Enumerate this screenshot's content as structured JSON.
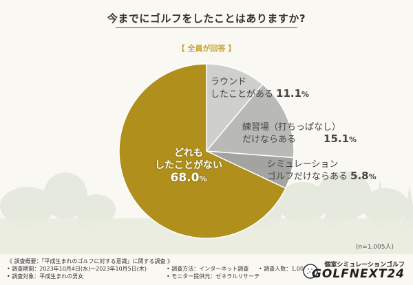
{
  "title": "今までにゴルフをしたことはありますか?",
  "subtitle": "【 全員が回答 】",
  "chart_data": {
    "type": "pie",
    "unit": "%",
    "slices": [
      {
        "label_lines": [
          "ラウンド",
          "したことがある"
        ],
        "value": 11.1,
        "value_text": "11.1",
        "color": "#cfcfcc"
      },
      {
        "label_lines": [
          "練習場（打ちっぱなし）",
          "だけならある"
        ],
        "value": 15.1,
        "value_text": "15.1",
        "color": "#b9b9b6"
      },
      {
        "label_lines": [
          "シミュレーション",
          "ゴルフだけならある"
        ],
        "value": 5.8,
        "value_text": "5.8",
        "color": "#a3a3a0"
      },
      {
        "label_lines": [
          "どれも",
          "したことがない"
        ],
        "value": 68.0,
        "value_text": "68.0",
        "color": "#b08f1c"
      }
    ]
  },
  "note_n": "(n=1,005人)",
  "footer": {
    "survey_overview": "《 調査概要：「平成生まれのゴルフに対する意識」に関する調査 》",
    "survey_period": "• 調査期間：2023年10月4日(水)～2023年10月5日(木)",
    "survey_target": "• 調査対象：平成生まれの男女",
    "survey_method": "• 調査方法：インターネット調査",
    "monitor_provider": "• モニター提供元：ゼネラルリサーチ",
    "survey_count": "• 調査人数：1,005人"
  },
  "logo": {
    "tagline": "個室シミュレーションゴルフ",
    "name": "GOLFNEXT24"
  }
}
